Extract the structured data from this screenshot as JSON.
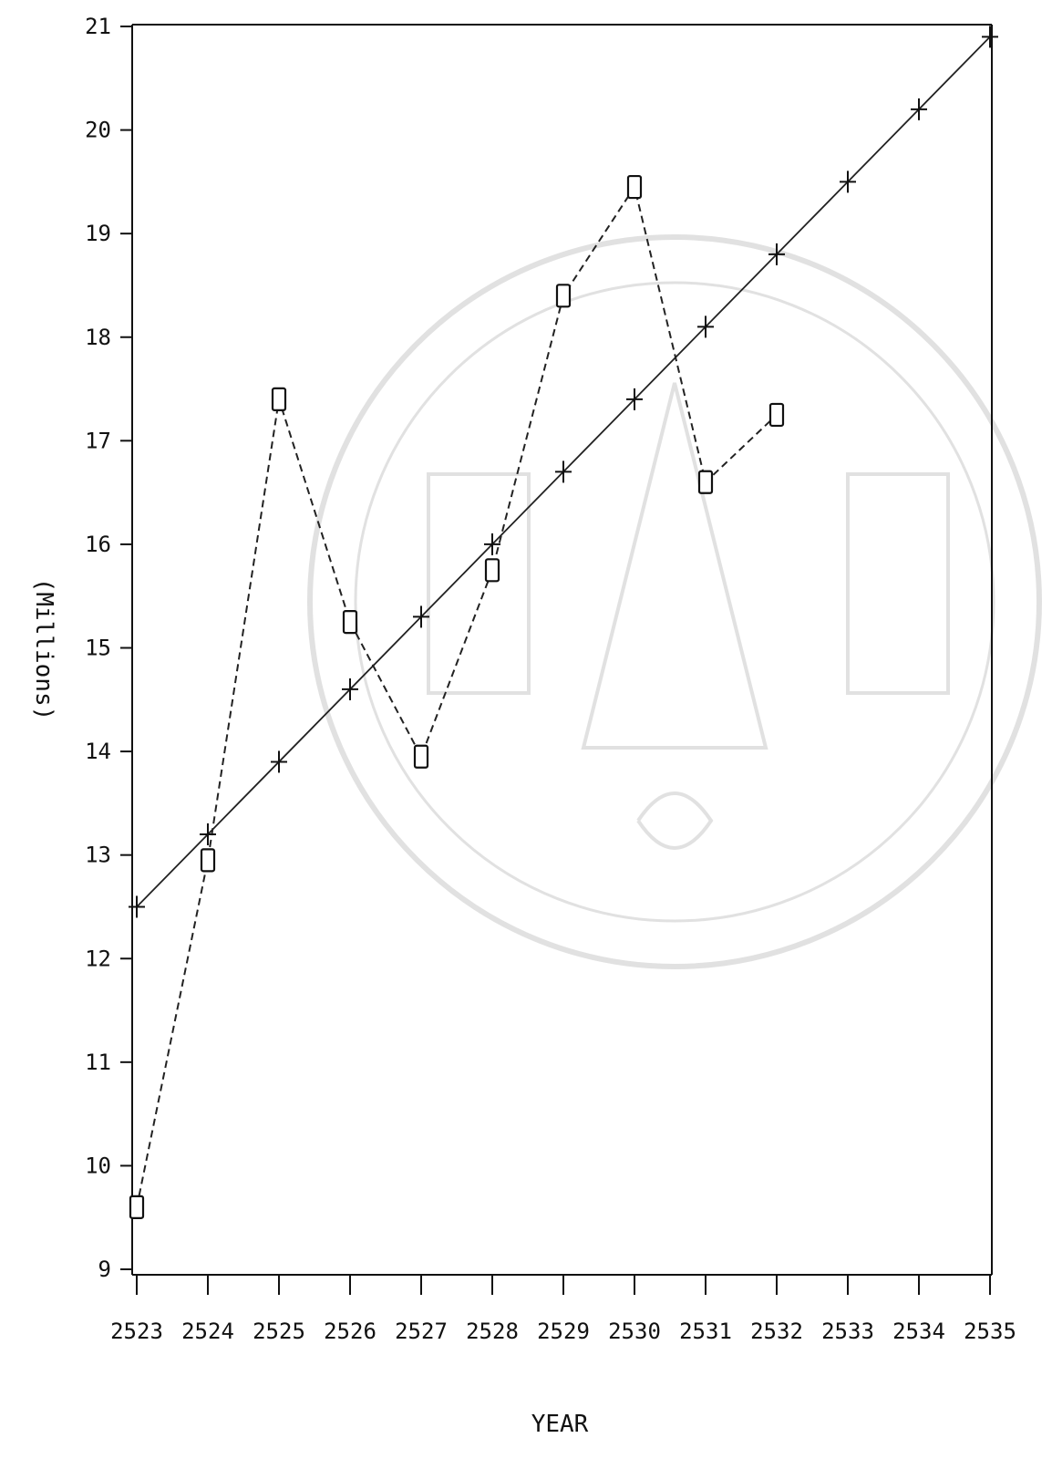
{
  "chart_data": {
    "type": "line",
    "title": "",
    "xlabel": "YEAR",
    "ylabel": "(Millions)",
    "x": [
      2523,
      2524,
      2525,
      2526,
      2527,
      2528,
      2529,
      2530,
      2531,
      2532,
      2533,
      2534,
      2535
    ],
    "xticks": [
      "2523",
      "2524",
      "2525",
      "2526",
      "2527",
      "2528",
      "2529",
      "2530",
      "2531",
      "2532",
      "2533",
      "2534",
      "2535"
    ],
    "ylim": [
      9,
      21
    ],
    "yticks": [
      "9",
      "10",
      "11",
      "12",
      "13",
      "14",
      "15",
      "16",
      "17",
      "18",
      "19",
      "20",
      "21"
    ],
    "grid": false,
    "series": [
      {
        "marker": "square",
        "line_style": "dashed",
        "x": [
          2523,
          2524,
          2525,
          2526,
          2527,
          2528,
          2529,
          2530,
          2531,
          2532
        ],
        "values": [
          9.6,
          12.95,
          17.4,
          15.25,
          13.95,
          15.75,
          18.4,
          19.45,
          16.6,
          17.25
        ]
      },
      {
        "marker": "plus",
        "line_style": "solid",
        "x": [
          2523,
          2524,
          2525,
          2526,
          2527,
          2528,
          2529,
          2530,
          2531,
          2532,
          2533,
          2534,
          2535
        ],
        "values": [
          12.5,
          13.2,
          13.9,
          14.6,
          15.3,
          16.0,
          16.7,
          17.4,
          18.1,
          18.8,
          19.5,
          20.2,
          20.9
        ]
      }
    ]
  }
}
